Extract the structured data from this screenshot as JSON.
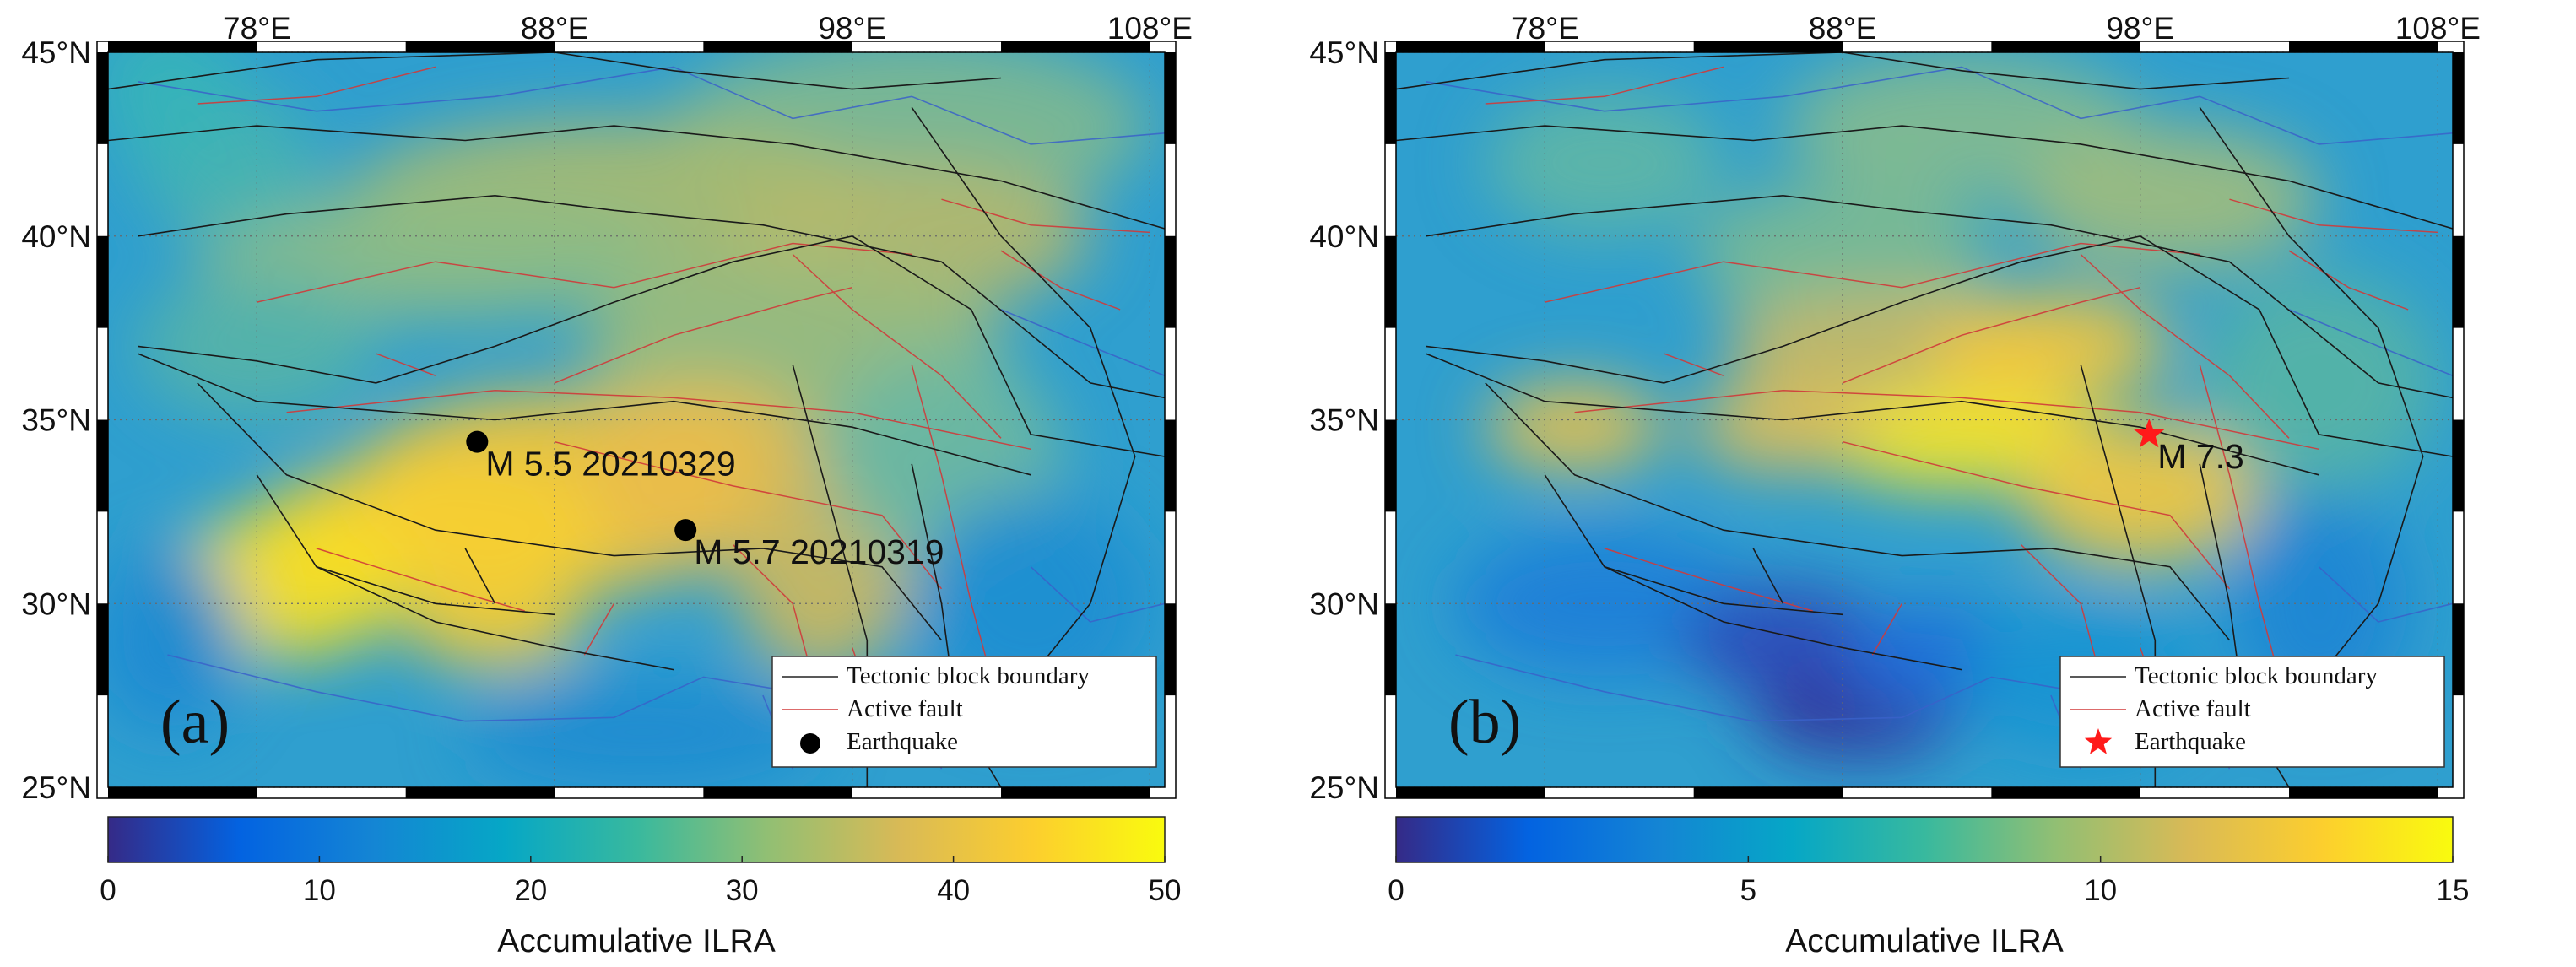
{
  "panels": [
    {
      "id": "a",
      "panel_label": "(a)",
      "colorbar": {
        "min": 0,
        "max": 50,
        "ticks": [
          "0",
          "10",
          "20",
          "30",
          "40",
          "50"
        ],
        "label": "Accumulative ILRA",
        "colormap": "parula"
      },
      "earthquakes": [
        {
          "lon": 85.4,
          "lat": 34.4,
          "label": "M 5.5 20210329",
          "symbol": "circle",
          "color": "#000000"
        },
        {
          "lon": 92.4,
          "lat": 32.0,
          "label": "M 5.7 20210319",
          "symbol": "circle",
          "color": "#000000"
        }
      ],
      "legend": {
        "position": "bottom-right",
        "items": [
          {
            "label": "Tectonic block boundary",
            "style": "line",
            "color": "#222222"
          },
          {
            "label": "Active fault",
            "style": "line",
            "color": "#d23a3a"
          },
          {
            "label": "Earthquake",
            "style": "circle",
            "color": "#000000"
          }
        ]
      }
    },
    {
      "id": "b",
      "panel_label": "(b)",
      "colorbar": {
        "min": 0,
        "max": 15,
        "ticks": [
          "0",
          "5",
          "10",
          "15"
        ],
        "label": "Accumulative ILRA",
        "colormap": "parula"
      },
      "earthquakes": [
        {
          "lon": 98.3,
          "lat": 34.6,
          "label": "M 7.3",
          "symbol": "star",
          "color": "#ff1a1a"
        }
      ],
      "legend": {
        "position": "bottom-right",
        "items": [
          {
            "label": "Tectonic block boundary",
            "style": "line",
            "color": "#222222"
          },
          {
            "label": "Active fault",
            "style": "line",
            "color": "#d23a3a"
          },
          {
            "label": "Earthquake",
            "style": "star",
            "color": "#ff1a1a"
          }
        ]
      }
    }
  ],
  "map": {
    "lon_range": [
      73,
      108.5
    ],
    "lat_range": [
      25,
      45
    ],
    "lon_ticks": [
      "78°E",
      "88°E",
      "98°E",
      "108°E"
    ],
    "lat_ticks": [
      "45°N",
      "40°N",
      "35°N",
      "30°N",
      "25°N"
    ]
  }
}
